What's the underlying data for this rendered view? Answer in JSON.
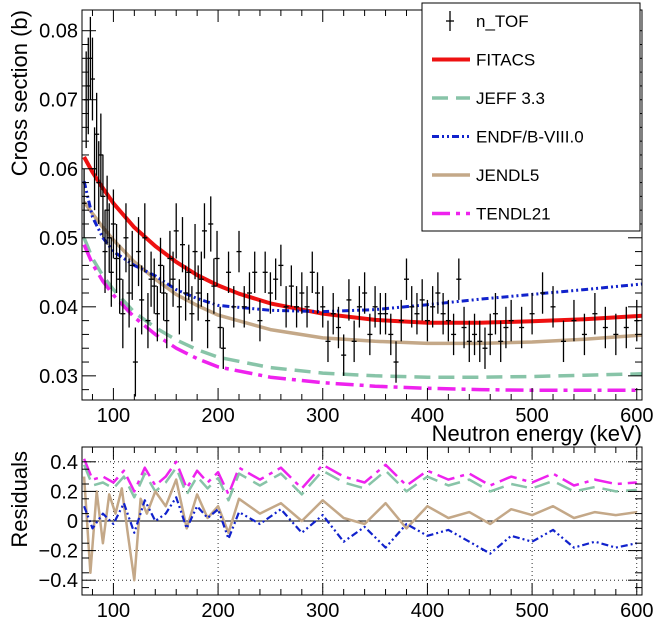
{
  "chart_data": [
    {
      "type": "scatter",
      "panel": "main",
      "xlabel": "Neutron energy (keV)",
      "ylabel": "Cross section (b)",
      "xlim": [
        70,
        605
      ],
      "ylim": [
        0.0265,
        0.083
      ],
      "x_ticks": [
        100,
        200,
        300,
        400,
        500,
        600
      ],
      "x_tick_labels": [
        "100",
        "200",
        "300",
        "400",
        "500",
        "600"
      ],
      "y_ticks": [
        0.03,
        0.04,
        0.05,
        0.06,
        0.07,
        0.08
      ],
      "y_tick_labels": [
        "0.03",
        "0.04",
        "0.05",
        "0.06",
        "0.07",
        "0.08"
      ],
      "grid": false,
      "legend_position": "top-right",
      "legend": [
        {
          "label": "n_TOF",
          "style": "points",
          "color": "#000000"
        },
        {
          "label": "FITACS",
          "style": "solid",
          "color": "#ee1111"
        },
        {
          "label": "JEFF 3.3",
          "style": "dashed",
          "color": "#88c4a8"
        },
        {
          "label": "ENDF/B-VIII.0",
          "style": "dashdotdot",
          "color": "#1122cc"
        },
        {
          "label": "JENDL5",
          "style": "solid",
          "color": "#c4a888"
        },
        {
          "label": "TENDL21",
          "style": "dashdot",
          "color": "#ee22ee"
        }
      ],
      "series": [
        {
          "name": "FITACS",
          "color": "#ee1111",
          "x": [
            72,
            80,
            90,
            100,
            120,
            140,
            160,
            180,
            200,
            220,
            250,
            300,
            350,
            400,
            450,
            500,
            550,
            605
          ],
          "y": [
            0.0617,
            0.0595,
            0.0572,
            0.055,
            0.0515,
            0.0488,
            0.0465,
            0.0446,
            0.0431,
            0.0419,
            0.0405,
            0.039,
            0.0381,
            0.0377,
            0.0377,
            0.0379,
            0.0382,
            0.0387
          ]
        },
        {
          "name": "JEFF 3.3",
          "color": "#88c4a8",
          "x": [
            72,
            80,
            90,
            100,
            120,
            140,
            160,
            180,
            200,
            250,
            300,
            350,
            400,
            450,
            500,
            550,
            605
          ],
          "y": [
            0.05,
            0.047,
            0.0445,
            0.0425,
            0.0392,
            0.037,
            0.0352,
            0.0338,
            0.0327,
            0.0312,
            0.0304,
            0.03,
            0.0298,
            0.0298,
            0.0299,
            0.0301,
            0.0303
          ]
        },
        {
          "name": "ENDF/B-VIII.0",
          "color": "#1122cc",
          "x": [
            72,
            80,
            90,
            100,
            110,
            120,
            140,
            160,
            180,
            200,
            250,
            300,
            350,
            400,
            450,
            500,
            550,
            605
          ],
          "y": [
            0.0582,
            0.053,
            0.05,
            0.048,
            0.047,
            0.046,
            0.0445,
            0.0425,
            0.0412,
            0.0402,
            0.0395,
            0.0393,
            0.0396,
            0.0403,
            0.0411,
            0.0418,
            0.0425,
            0.0433
          ]
        },
        {
          "name": "JENDL5",
          "color": "#c4a888",
          "x": [
            72,
            80,
            90,
            100,
            120,
            140,
            160,
            180,
            200,
            250,
            300,
            350,
            400,
            450,
            500,
            550,
            605
          ],
          "y": [
            0.0552,
            0.0535,
            0.0515,
            0.0497,
            0.0465,
            0.044,
            0.0418,
            0.0402,
            0.0388,
            0.0367,
            0.0355,
            0.035,
            0.0347,
            0.0347,
            0.0349,
            0.0353,
            0.0359
          ]
        },
        {
          "name": "TENDL21",
          "color": "#ee22ee",
          "x": [
            72,
            80,
            90,
            100,
            120,
            140,
            160,
            180,
            200,
            250,
            300,
            350,
            400,
            450,
            500,
            550,
            605
          ],
          "y": [
            0.049,
            0.0462,
            0.0437,
            0.0417,
            0.0385,
            0.036,
            0.034,
            0.0325,
            0.0313,
            0.0298,
            0.029,
            0.0285,
            0.0282,
            0.028,
            0.0279,
            0.0279,
            0.0279
          ]
        },
        {
          "name": "n_TOF",
          "color": "#000000",
          "x": [
            72,
            74,
            76,
            78,
            80,
            82,
            84,
            86,
            88,
            90,
            92,
            94,
            96,
            98,
            100,
            103,
            106,
            109,
            112,
            115,
            118,
            121,
            124,
            127,
            130,
            133,
            136,
            139,
            142,
            145,
            148,
            151,
            154,
            157,
            160,
            163,
            166,
            169,
            172,
            175,
            178,
            181,
            184,
            187,
            190,
            193,
            196,
            199,
            202,
            205,
            210,
            215,
            220,
            225,
            230,
            235,
            240,
            245,
            250,
            255,
            260,
            265,
            270,
            275,
            280,
            285,
            290,
            295,
            300,
            305,
            310,
            315,
            320,
            325,
            330,
            335,
            340,
            345,
            350,
            355,
            360,
            365,
            370,
            375,
            380,
            385,
            390,
            395,
            400,
            405,
            410,
            415,
            420,
            425,
            430,
            435,
            440,
            445,
            450,
            455,
            460,
            465,
            470,
            475,
            480,
            490,
            500,
            510,
            520,
            530,
            540,
            550,
            560,
            570,
            580,
            590,
            600
          ],
          "y": [
            0.055,
            0.07,
            0.072,
            0.076,
            0.073,
            0.06,
            0.065,
            0.058,
            0.062,
            0.056,
            0.048,
            0.054,
            0.05,
            0.045,
            0.052,
            0.047,
            0.044,
            0.039,
            0.05,
            0.042,
            0.046,
            0.032,
            0.048,
            0.041,
            0.05,
            0.038,
            0.044,
            0.043,
            0.039,
            0.046,
            0.042,
            0.038,
            0.047,
            0.044,
            0.051,
            0.04,
            0.049,
            0.042,
            0.045,
            0.039,
            0.048,
            0.042,
            0.044,
            0.051,
            0.038,
            0.052,
            0.043,
            0.047,
            0.037,
            0.034,
            0.045,
            0.04,
            0.048,
            0.04,
            0.042,
            0.045,
            0.038,
            0.045,
            0.042,
            0.044,
            0.046,
            0.04,
            0.043,
            0.04,
            0.042,
            0.04,
            0.045,
            0.042,
            0.04,
            0.035,
            0.039,
            0.037,
            0.033,
            0.041,
            0.035,
            0.04,
            0.042,
            0.036,
            0.04,
            0.039,
            0.039,
            0.036,
            0.032,
            0.038,
            0.044,
            0.04,
            0.039,
            0.041,
            0.038,
            0.04,
            0.042,
            0.039,
            0.038,
            0.036,
            0.044,
            0.037,
            0.035,
            0.036,
            0.035,
            0.034,
            0.036,
            0.039,
            0.035,
            0.037,
            0.038,
            0.037,
            0.039,
            0.042,
            0.04,
            0.035,
            0.038,
            0.036,
            0.039,
            0.037,
            0.036,
            0.037,
            0.038
          ],
          "yerr": [
            0.005,
            0.007,
            0.007,
            0.006,
            0.006,
            0.006,
            0.006,
            0.006,
            0.006,
            0.006,
            0.006,
            0.005,
            0.005,
            0.005,
            0.005,
            0.005,
            0.005,
            0.005,
            0.005,
            0.005,
            0.005,
            0.005,
            0.005,
            0.005,
            0.005,
            0.004,
            0.004,
            0.004,
            0.004,
            0.004,
            0.004,
            0.004,
            0.004,
            0.004,
            0.004,
            0.004,
            0.004,
            0.004,
            0.004,
            0.004,
            0.004,
            0.004,
            0.004,
            0.004,
            0.004,
            0.004,
            0.004,
            0.004,
            0.003,
            0.003,
            0.003,
            0.003,
            0.003,
            0.003,
            0.003,
            0.003,
            0.003,
            0.003,
            0.003,
            0.003,
            0.003,
            0.003,
            0.003,
            0.003,
            0.003,
            0.003,
            0.003,
            0.003,
            0.003,
            0.003,
            0.003,
            0.003,
            0.003,
            0.003,
            0.003,
            0.003,
            0.003,
            0.003,
            0.003,
            0.003,
            0.003,
            0.003,
            0.003,
            0.003,
            0.003,
            0.003,
            0.003,
            0.003,
            0.003,
            0.003,
            0.003,
            0.003,
            0.003,
            0.003,
            0.003,
            0.003,
            0.003,
            0.003,
            0.003,
            0.003,
            0.003,
            0.003,
            0.003,
            0.003,
            0.003,
            0.003,
            0.003,
            0.003,
            0.003,
            0.003,
            0.003,
            0.003,
            0.003,
            0.003,
            0.003,
            0.003,
            0.003
          ]
        }
      ]
    },
    {
      "type": "line",
      "panel": "residuals",
      "xlabel": "",
      "ylabel": "Residuals",
      "xlim": [
        70,
        605
      ],
      "ylim": [
        -0.5,
        0.5
      ],
      "x_ticks": [
        100,
        200,
        300,
        400,
        500,
        600
      ],
      "x_tick_labels": [
        "100",
        "200",
        "300",
        "400",
        "500",
        "600"
      ],
      "y_ticks": [
        -0.4,
        -0.2,
        0,
        0.2,
        0.4
      ],
      "y_tick_labels": [
        "−0.4",
        "−0.2",
        "0",
        "0.2",
        "0.4"
      ],
      "grid": true,
      "series": [
        {
          "name": "TENDL21",
          "color": "#ee22ee",
          "x": [
            72,
            80,
            90,
            100,
            110,
            120,
            130,
            140,
            150,
            160,
            170,
            180,
            190,
            200,
            210,
            220,
            240,
            260,
            280,
            300,
            320,
            340,
            360,
            380,
            400,
            420,
            440,
            460,
            480,
            500,
            520,
            540,
            560,
            580,
            600
          ],
          "y": [
            0.42,
            0.28,
            0.3,
            0.26,
            0.34,
            0.2,
            0.36,
            0.24,
            0.3,
            0.4,
            0.22,
            0.34,
            0.26,
            0.33,
            0.18,
            0.36,
            0.28,
            0.36,
            0.22,
            0.38,
            0.3,
            0.26,
            0.38,
            0.24,
            0.34,
            0.28,
            0.32,
            0.24,
            0.3,
            0.26,
            0.32,
            0.24,
            0.28,
            0.25,
            0.26
          ]
        },
        {
          "name": "JEFF 3.3",
          "color": "#88c4a8",
          "x": [
            72,
            80,
            90,
            100,
            110,
            120,
            130,
            140,
            150,
            160,
            170,
            180,
            190,
            200,
            210,
            220,
            240,
            260,
            280,
            300,
            320,
            340,
            360,
            380,
            400,
            420,
            440,
            460,
            480,
            500,
            520,
            540,
            560,
            580,
            600
          ],
          "y": [
            0.38,
            0.24,
            0.26,
            0.22,
            0.3,
            0.16,
            0.32,
            0.2,
            0.26,
            0.36,
            0.18,
            0.3,
            0.22,
            0.29,
            0.14,
            0.32,
            0.24,
            0.32,
            0.18,
            0.34,
            0.26,
            0.22,
            0.34,
            0.2,
            0.3,
            0.24,
            0.28,
            0.2,
            0.25,
            0.22,
            0.27,
            0.2,
            0.23,
            0.2,
            0.21
          ]
        },
        {
          "name": "JENDL5",
          "color": "#c4a888",
          "x": [
            72,
            78,
            84,
            90,
            96,
            102,
            108,
            114,
            120,
            126,
            132,
            140,
            150,
            160,
            170,
            180,
            190,
            200,
            210,
            220,
            240,
            260,
            280,
            300,
            320,
            340,
            360,
            380,
            400,
            420,
            440,
            460,
            480,
            500,
            520,
            540,
            560,
            580,
            600
          ],
          "y": [
            0.3,
            -0.35,
            0.2,
            -0.15,
            0.18,
            0.05,
            0.22,
            -0.1,
            -0.4,
            0.15,
            0.05,
            0.2,
            0.1,
            0.28,
            -0.05,
            0.18,
            0.02,
            0.1,
            -0.08,
            0.15,
            0.05,
            0.12,
            0.0,
            0.14,
            0.02,
            -0.02,
            0.12,
            -0.05,
            0.1,
            0.02,
            0.06,
            -0.02,
            0.08,
            0.04,
            0.1,
            0.02,
            0.06,
            0.04,
            0.06
          ]
        },
        {
          "name": "ENDF/B-VIII.0",
          "color": "#1122cc",
          "x": [
            72,
            80,
            90,
            100,
            110,
            120,
            130,
            140,
            150,
            160,
            170,
            180,
            190,
            200,
            210,
            220,
            240,
            260,
            280,
            300,
            320,
            340,
            360,
            380,
            400,
            420,
            440,
            460,
            480,
            500,
            520,
            540,
            560,
            580,
            600
          ],
          "y": [
            0.1,
            -0.05,
            0.05,
            -0.02,
            0.12,
            -0.08,
            0.14,
            0.0,
            0.05,
            0.16,
            -0.05,
            0.1,
            0.02,
            0.08,
            -0.12,
            0.06,
            -0.02,
            0.08,
            -0.08,
            0.04,
            -0.14,
            -0.04,
            -0.18,
            -0.02,
            -0.1,
            -0.06,
            -0.14,
            -0.22,
            -0.1,
            -0.14,
            -0.06,
            -0.18,
            -0.14,
            -0.18,
            -0.15
          ]
        }
      ]
    }
  ]
}
